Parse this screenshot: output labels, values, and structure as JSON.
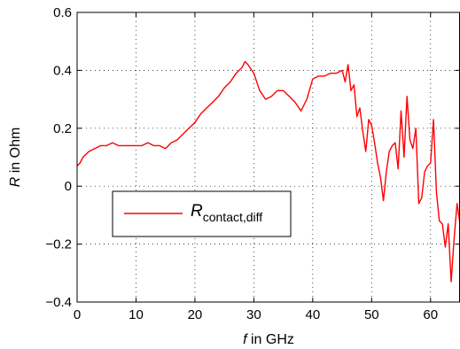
{
  "chart_data": {
    "type": "line",
    "xlabel": {
      "var": "f",
      "rest": " in GHz"
    },
    "ylabel": {
      "var": "R",
      "rest": " in Ohm"
    },
    "xlim": [
      0,
      65
    ],
    "ylim": [
      -0.4,
      0.6
    ],
    "xticks": [
      0,
      10,
      20,
      30,
      40,
      50,
      60
    ],
    "yticks": [
      -0.4,
      -0.2,
      0,
      0.2,
      0.4,
      0.6
    ],
    "xtick_labels": [
      "0",
      "10",
      "20",
      "30",
      "40",
      "50",
      "60"
    ],
    "ytick_labels": [
      "−0.4",
      "−0.2",
      "0",
      "0.2",
      "0.4",
      "0.6"
    ],
    "grid": true,
    "legend_position": "lower-left",
    "series": [
      {
        "name": {
          "main": "R",
          "sub": "contact,diff"
        },
        "color": "#ff0000",
        "x": [
          0,
          0.5,
          1,
          2,
          3,
          4,
          5,
          6,
          7,
          8,
          9,
          10,
          11,
          12,
          13,
          14,
          15,
          16,
          17,
          18,
          19,
          20,
          21,
          22,
          23,
          24,
          25,
          26,
          27,
          28,
          28.5,
          29,
          30,
          31,
          32,
          33,
          34,
          35,
          36,
          37,
          38,
          39,
          40,
          41,
          42,
          43,
          44,
          45,
          45.5,
          46,
          46.5,
          47,
          47.5,
          48,
          48.5,
          49,
          49.5,
          50,
          50.5,
          51,
          51.5,
          52,
          52.5,
          53,
          53.5,
          54,
          54.5,
          55,
          55.5,
          56,
          56.5,
          57,
          57.5,
          58,
          58.5,
          59,
          59.5,
          60,
          60.5,
          61,
          61.5,
          62,
          62.5,
          63,
          63.5,
          64,
          64.5,
          65
        ],
        "y": [
          0.07,
          0.08,
          0.1,
          0.12,
          0.13,
          0.14,
          0.14,
          0.15,
          0.14,
          0.14,
          0.14,
          0.14,
          0.14,
          0.15,
          0.14,
          0.14,
          0.13,
          0.15,
          0.16,
          0.18,
          0.2,
          0.22,
          0.25,
          0.27,
          0.29,
          0.31,
          0.34,
          0.36,
          0.39,
          0.41,
          0.43,
          0.42,
          0.39,
          0.33,
          0.3,
          0.31,
          0.33,
          0.33,
          0.31,
          0.29,
          0.26,
          0.3,
          0.37,
          0.38,
          0.38,
          0.39,
          0.39,
          0.4,
          0.36,
          0.42,
          0.33,
          0.35,
          0.24,
          0.27,
          0.19,
          0.12,
          0.23,
          0.21,
          0.15,
          0.08,
          0.03,
          -0.05,
          0.05,
          0.12,
          0.14,
          0.15,
          0.06,
          0.26,
          0.1,
          0.31,
          0.16,
          0.13,
          0.2,
          -0.06,
          -0.04,
          0.05,
          0.07,
          0.08,
          0.23,
          -0.02,
          -0.12,
          -0.13,
          -0.21,
          -0.13,
          -0.33,
          -0.18,
          -0.06,
          -0.13
        ]
      }
    ]
  }
}
